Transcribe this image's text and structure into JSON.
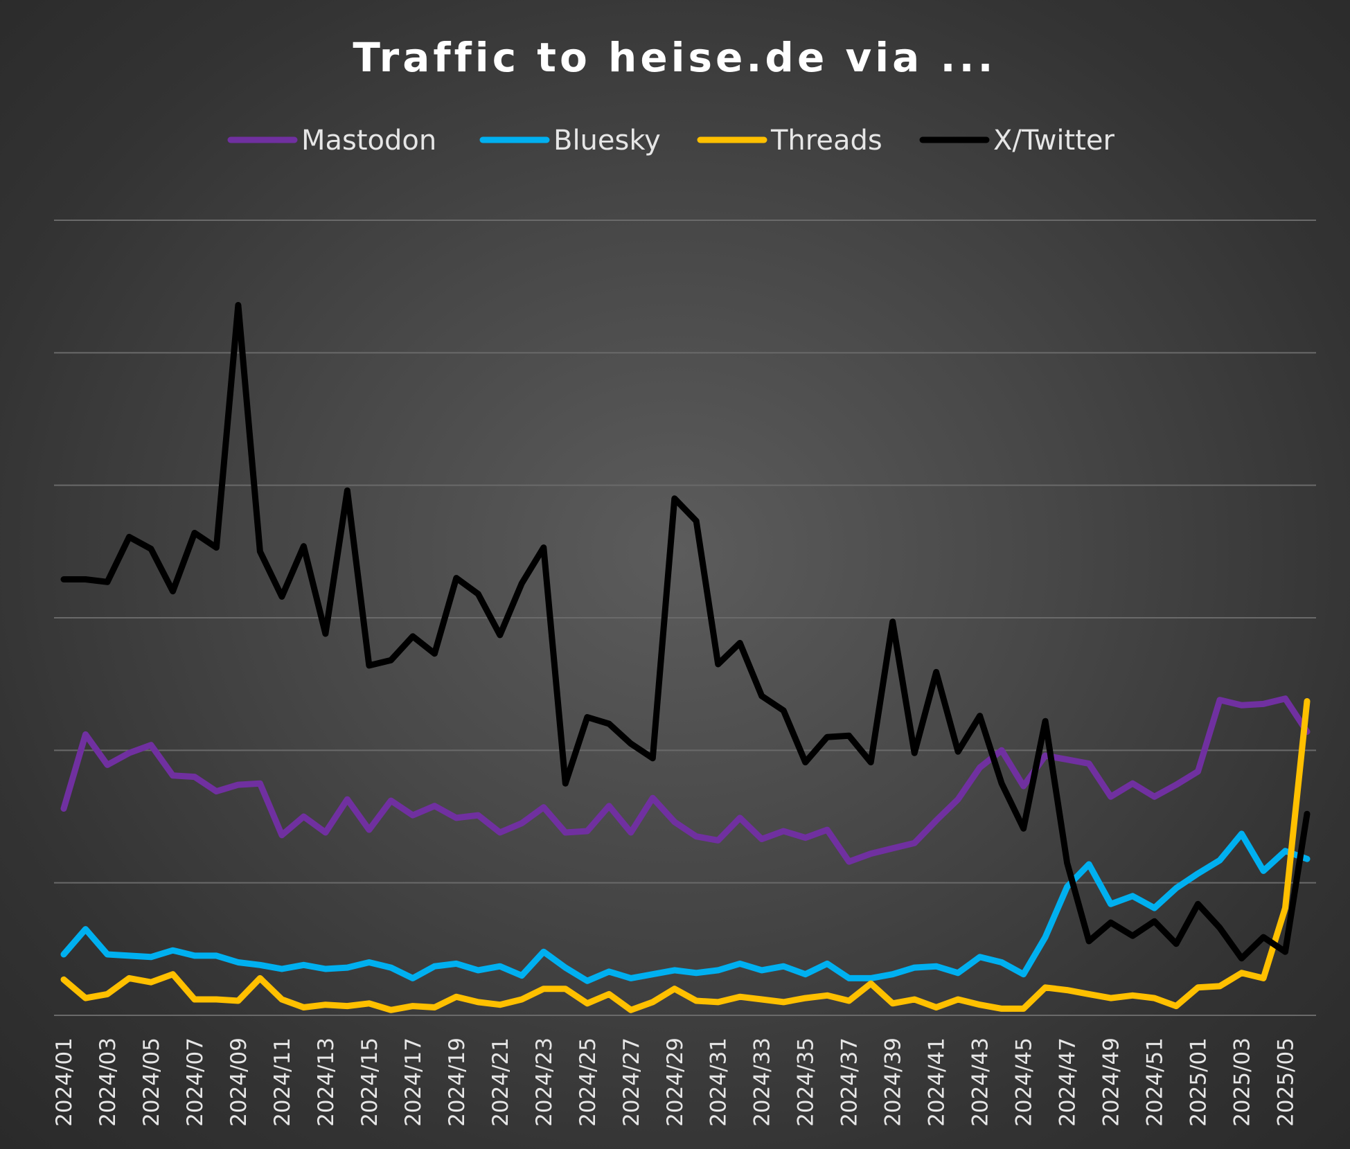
{
  "chart_data": {
    "type": "line",
    "title": "Traffic to heise.de via ...",
    "xlabel": "",
    "ylabel": "",
    "legend_position": "top",
    "grid": true,
    "ylim": [
      0,
      60
    ],
    "gridlines": [
      0,
      10,
      20,
      30,
      40,
      50,
      60
    ],
    "x": [
      "2024/01",
      "2024/02",
      "2024/03",
      "2024/04",
      "2024/05",
      "2024/06",
      "2024/07",
      "2024/08",
      "2024/09",
      "2024/10",
      "2024/11",
      "2024/12",
      "2024/13",
      "2024/14",
      "2024/15",
      "2024/16",
      "2024/17",
      "2024/18",
      "2024/19",
      "2024/20",
      "2024/21",
      "2024/22",
      "2024/23",
      "2024/24",
      "2024/25",
      "2024/26",
      "2024/27",
      "2024/28",
      "2024/29",
      "2024/30",
      "2024/31",
      "2024/32",
      "2024/33",
      "2024/34",
      "2024/35",
      "2024/36",
      "2024/37",
      "2024/38",
      "2024/39",
      "2024/40",
      "2024/41",
      "2024/42",
      "2024/43",
      "2024/44",
      "2024/45",
      "2024/46",
      "2024/47",
      "2024/48",
      "2024/49",
      "2024/50",
      "2024/51",
      "2024/52",
      "2025/01",
      "2025/02",
      "2025/03",
      "2025/04",
      "2025/05",
      "2025/06"
    ],
    "x_tick_labels": [
      "2024/01",
      "2024/03",
      "2024/05",
      "2024/07",
      "2024/09",
      "2024/11",
      "2024/13",
      "2024/15",
      "2024/17",
      "2024/19",
      "2024/21",
      "2024/23",
      "2024/25",
      "2024/27",
      "2024/29",
      "2024/31",
      "2024/33",
      "2024/35",
      "2024/37",
      "2024/39",
      "2024/41",
      "2024/43",
      "2024/45",
      "2024/47",
      "2024/49",
      "2024/51",
      "2025/01",
      "2025/03",
      "2025/05"
    ],
    "series": [
      {
        "name": "Mastodon",
        "color": "#7030a0",
        "values": [
          15.6,
          21.2,
          18.9,
          19.8,
          20.4,
          18.1,
          18.0,
          16.9,
          17.4,
          17.5,
          13.6,
          15.0,
          13.8,
          16.3,
          14.0,
          16.2,
          15.1,
          15.8,
          14.9,
          15.1,
          13.8,
          14.5,
          15.7,
          13.8,
          13.9,
          15.8,
          13.8,
          16.4,
          14.6,
          13.5,
          13.2,
          14.9,
          13.3,
          13.9,
          13.4,
          14.0,
          11.6,
          12.2,
          12.6,
          13.0,
          14.7,
          16.3,
          18.7,
          20.0,
          17.3,
          19.6,
          19.3,
          19.0,
          16.5,
          17.5,
          16.5,
          17.4,
          18.4,
          23.8,
          23.4,
          23.5,
          23.9,
          21.4
        ]
      },
      {
        "name": "Bluesky",
        "color": "#00b0f0",
        "values": [
          4.6,
          6.5,
          4.6,
          4.5,
          4.4,
          4.9,
          4.5,
          4.5,
          4.0,
          3.8,
          3.5,
          3.8,
          3.5,
          3.6,
          4.0,
          3.6,
          2.8,
          3.7,
          3.9,
          3.4,
          3.7,
          3.0,
          4.8,
          3.6,
          2.6,
          3.3,
          2.8,
          3.1,
          3.4,
          3.2,
          3.4,
          3.9,
          3.4,
          3.7,
          3.1,
          3.9,
          2.8,
          2.8,
          3.1,
          3.6,
          3.7,
          3.2,
          4.4,
          4.0,
          3.1,
          5.9,
          9.7,
          11.4,
          8.4,
          9.0,
          8.1,
          9.6,
          10.7,
          11.7,
          13.7,
          10.9,
          12.4,
          11.8
        ]
      },
      {
        "name": "Threads",
        "color": "#ffc000",
        "values": [
          2.7,
          1.3,
          1.6,
          2.8,
          2.5,
          3.1,
          1.2,
          1.2,
          1.1,
          2.8,
          1.2,
          0.6,
          0.8,
          0.7,
          0.9,
          0.4,
          0.7,
          0.6,
          1.4,
          1.0,
          0.8,
          1.2,
          2.0,
          2.0,
          0.9,
          1.6,
          0.4,
          1.0,
          2.0,
          1.1,
          1.0,
          1.4,
          1.2,
          1.0,
          1.3,
          1.5,
          1.1,
          2.4,
          0.9,
          1.2,
          0.6,
          1.2,
          0.8,
          0.5,
          0.5,
          2.1,
          1.9,
          1.6,
          1.3,
          1.5,
          1.3,
          0.7,
          2.1,
          2.2,
          3.2,
          2.8,
          8.1,
          23.7
        ]
      },
      {
        "name": "X/Twitter",
        "color": "#000000",
        "values": [
          32.9,
          32.9,
          32.7,
          36.1,
          35.2,
          32.0,
          36.4,
          35.3,
          53.6,
          35.0,
          31.6,
          35.4,
          28.8,
          39.6,
          26.4,
          26.8,
          28.6,
          27.3,
          33.0,
          31.8,
          28.7,
          32.6,
          35.3,
          17.5,
          22.5,
          22.0,
          20.5,
          19.4,
          39.0,
          37.3,
          26.5,
          28.1,
          24.1,
          23.0,
          19.1,
          21.0,
          21.1,
          19.1,
          29.7,
          19.8,
          25.9,
          19.9,
          22.6,
          17.5,
          14.1,
          22.2,
          11.5,
          5.6,
          7.0,
          6.0,
          7.1,
          5.4,
          8.4,
          6.6,
          4.3,
          5.9,
          4.8,
          15.2
        ]
      }
    ]
  }
}
